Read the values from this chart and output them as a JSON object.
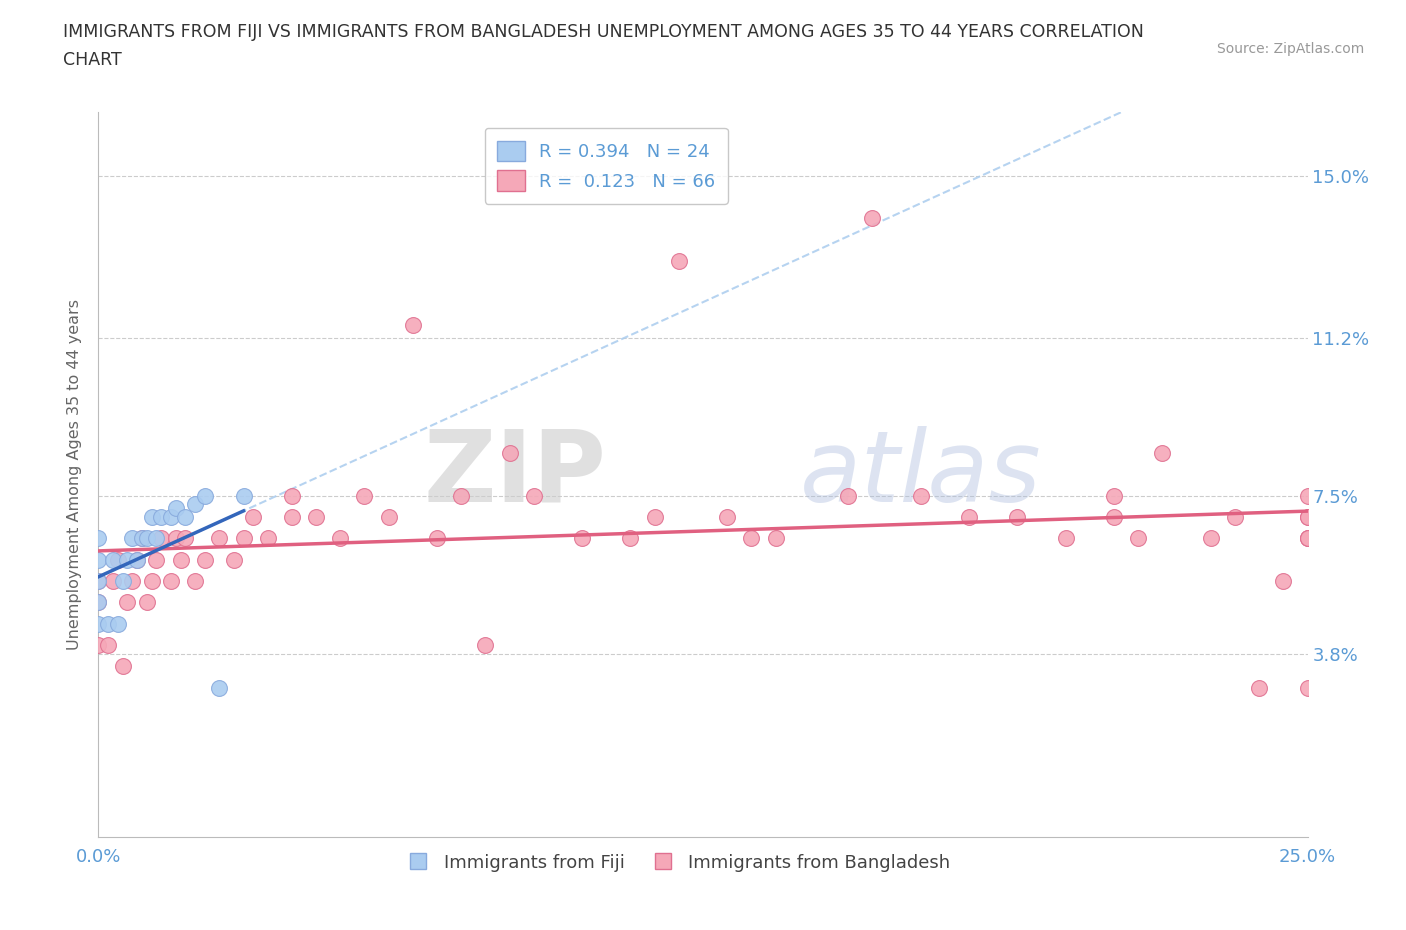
{
  "title_line1": "IMMIGRANTS FROM FIJI VS IMMIGRANTS FROM BANGLADESH UNEMPLOYMENT AMONG AGES 35 TO 44 YEARS CORRELATION",
  "title_line2": "CHART",
  "source": "Source: ZipAtlas.com",
  "ylabel": "Unemployment Among Ages 35 to 44 years",
  "xlim": [
    0.0,
    0.25
  ],
  "ylim": [
    -0.005,
    0.165
  ],
  "ytick_vals": [
    0.038,
    0.075,
    0.112,
    0.15
  ],
  "ytick_labels": [
    "3.8%",
    "7.5%",
    "11.2%",
    "15.0%"
  ],
  "background_color": "#ffffff",
  "grid_color": "#cccccc",
  "watermark_zip": "ZIP",
  "watermark_atlas": "atlas",
  "fiji_color": "#aaccf0",
  "fiji_edge_color": "#88aadd",
  "fiji_line_color": "#3366bb",
  "fiji_dash_color": "#aaccee",
  "bangladesh_color": "#f5a8b8",
  "bangladesh_edge_color": "#e07090",
  "bangladesh_line_color": "#e06080",
  "fiji_R": "0.394",
  "fiji_N": "24",
  "bangladesh_R": "0.123",
  "bangladesh_N": "66",
  "fiji_scatter_x": [
    0.0,
    0.0,
    0.0,
    0.0,
    0.0,
    0.002,
    0.003,
    0.004,
    0.005,
    0.006,
    0.007,
    0.008,
    0.009,
    0.01,
    0.011,
    0.012,
    0.013,
    0.015,
    0.016,
    0.018,
    0.02,
    0.022,
    0.025,
    0.03
  ],
  "fiji_scatter_y": [
    0.045,
    0.05,
    0.055,
    0.06,
    0.065,
    0.045,
    0.06,
    0.045,
    0.055,
    0.06,
    0.065,
    0.06,
    0.065,
    0.065,
    0.07,
    0.065,
    0.07,
    0.07,
    0.072,
    0.07,
    0.073,
    0.075,
    0.03,
    0.075
  ],
  "bangladesh_scatter_x": [
    0.0,
    0.0,
    0.0,
    0.002,
    0.003,
    0.004,
    0.005,
    0.006,
    0.007,
    0.008,
    0.009,
    0.01,
    0.011,
    0.012,
    0.013,
    0.015,
    0.016,
    0.017,
    0.018,
    0.02,
    0.022,
    0.025,
    0.028,
    0.03,
    0.032,
    0.035,
    0.04,
    0.04,
    0.045,
    0.05,
    0.055,
    0.06,
    0.065,
    0.07,
    0.075,
    0.08,
    0.085,
    0.09,
    0.1,
    0.11,
    0.115,
    0.12,
    0.13,
    0.135,
    0.14,
    0.155,
    0.16,
    0.17,
    0.18,
    0.19,
    0.2,
    0.21,
    0.21,
    0.215,
    0.22,
    0.23,
    0.235,
    0.24,
    0.245,
    0.25,
    0.25,
    0.25,
    0.25,
    0.25,
    0.25,
    0.25
  ],
  "bangladesh_scatter_y": [
    0.04,
    0.05,
    0.055,
    0.04,
    0.055,
    0.06,
    0.035,
    0.05,
    0.055,
    0.06,
    0.065,
    0.05,
    0.055,
    0.06,
    0.065,
    0.055,
    0.065,
    0.06,
    0.065,
    0.055,
    0.06,
    0.065,
    0.06,
    0.065,
    0.07,
    0.065,
    0.07,
    0.075,
    0.07,
    0.065,
    0.075,
    0.07,
    0.115,
    0.065,
    0.075,
    0.04,
    0.085,
    0.075,
    0.065,
    0.065,
    0.07,
    0.13,
    0.07,
    0.065,
    0.065,
    0.075,
    0.14,
    0.075,
    0.07,
    0.07,
    0.065,
    0.075,
    0.07,
    0.065,
    0.085,
    0.065,
    0.07,
    0.03,
    0.055,
    0.065,
    0.065,
    0.07,
    0.075,
    0.065,
    0.07,
    0.03
  ]
}
